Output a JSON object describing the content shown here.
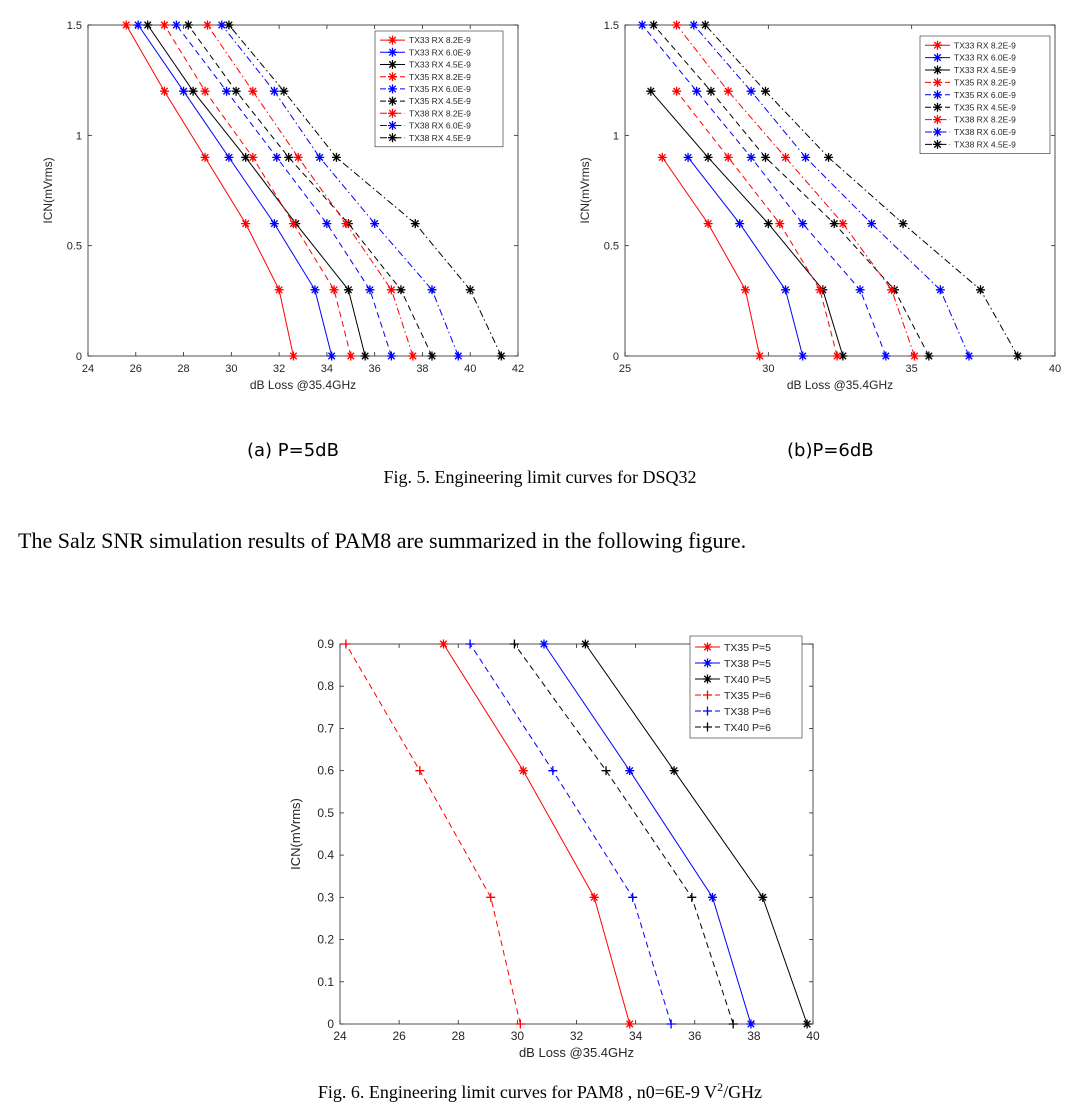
{
  "figure5": {
    "label_a": "(a) P=5dB",
    "label_b": "(b)P=6dB",
    "caption": "Fig. 5.  Engineering limit curves for DSQ32"
  },
  "paragraph": "The Salz SNR simulation results of PAM8 are summarized in the following figure.",
  "figure6": {
    "caption_prefix": "Fig. 6.  Engineering limit curves for PAM8 , n0=6E-9 V",
    "caption_sup": "2",
    "caption_suffix": "/GHz"
  },
  "chart_data": [
    {
      "type": "line",
      "xlabel": "dB Loss @35.4GHz",
      "ylabel": "ICN(mVrms)",
      "xlim": [
        24,
        42
      ],
      "ylim": [
        0,
        1.5
      ],
      "xticks": [
        24,
        26,
        28,
        30,
        32,
        34,
        36,
        38,
        40,
        42
      ],
      "yticks": [
        0,
        0.5,
        1,
        1.5
      ],
      "legend_position": "top-right",
      "y": [
        0,
        0.3,
        0.6,
        0.9,
        1.2,
        1.5
      ],
      "series": [
        {
          "name": "TX33 RX 8.2E-9",
          "color": "#ff0000",
          "dash": "solid",
          "marker": "star",
          "x": [
            32.6,
            32.0,
            30.6,
            28.9,
            27.2,
            25.6
          ]
        },
        {
          "name": "TX33 RX 6.0E-9",
          "color": "#0000ff",
          "dash": "solid",
          "marker": "star",
          "x": [
            34.2,
            33.5,
            31.8,
            29.9,
            28.0,
            26.1
          ]
        },
        {
          "name": "TX33 RX 4.5E-9",
          "color": "#000000",
          "dash": "solid",
          "marker": "star",
          "x": [
            35.6,
            34.9,
            32.7,
            30.6,
            28.4,
            26.5
          ]
        },
        {
          "name": "TX35 RX 8.2E-9",
          "color": "#ff0000",
          "dash": "dashed",
          "marker": "star",
          "x": [
            35.0,
            34.3,
            32.6,
            30.9,
            28.9,
            27.2
          ]
        },
        {
          "name": "TX35 RX 6.0E-9",
          "color": "#0000ff",
          "dash": "dashed",
          "marker": "star",
          "x": [
            36.7,
            35.8,
            34.0,
            31.9,
            29.8,
            27.7
          ]
        },
        {
          "name": "TX35 RX 4.5E-9",
          "color": "#000000",
          "dash": "dashed",
          "marker": "star",
          "x": [
            38.4,
            37.1,
            34.9,
            32.4,
            30.2,
            28.2
          ]
        },
        {
          "name": "TX38 RX 8.2E-9",
          "color": "#ff0000",
          "dash": "dashdot",
          "marker": "star",
          "x": [
            37.6,
            36.7,
            34.8,
            32.8,
            30.9,
            29.0
          ]
        },
        {
          "name": "TX38 RX 6.0E-9",
          "color": "#0000ff",
          "dash": "dashdot",
          "marker": "star",
          "x": [
            39.5,
            38.4,
            36.0,
            33.7,
            31.8,
            29.6
          ]
        },
        {
          "name": "TX38 RX 4.5E-9",
          "color": "#000000",
          "dash": "dashdot",
          "marker": "star",
          "x": [
            41.3,
            40.0,
            37.7,
            34.4,
            32.2,
            29.9
          ]
        }
      ]
    },
    {
      "type": "line",
      "xlabel": "dB Loss @35.4GHz",
      "ylabel": "ICN(mVrms)",
      "xlim": [
        25,
        40
      ],
      "ylim": [
        0,
        1.5
      ],
      "xticks": [
        25,
        30,
        35,
        40
      ],
      "yticks": [
        0,
        0.5,
        1,
        1.5
      ],
      "legend_position": "top-right",
      "y": [
        0,
        0.3,
        0.6,
        0.9,
        1.2,
        1.5
      ],
      "series": [
        {
          "name": "TX33 RX 8.2E-9",
          "color": "#ff0000",
          "dash": "solid",
          "marker": "star",
          "x": [
            29.7,
            29.2,
            27.9,
            26.3,
            null,
            null
          ]
        },
        {
          "name": "TX33 RX 6.0E-9",
          "color": "#0000ff",
          "dash": "solid",
          "marker": "star",
          "x": [
            31.2,
            30.6,
            29.0,
            27.2,
            null,
            null
          ]
        },
        {
          "name": "TX33 RX 4.5E-9",
          "color": "#000000",
          "dash": "solid",
          "marker": "star",
          "x": [
            32.6,
            31.9,
            30.0,
            27.9,
            25.9,
            null
          ]
        },
        {
          "name": "TX35 RX 8.2E-9",
          "color": "#ff0000",
          "dash": "dashed",
          "marker": "star",
          "x": [
            32.4,
            31.8,
            30.4,
            28.6,
            26.8,
            null
          ]
        },
        {
          "name": "TX35 RX 6.0E-9",
          "color": "#0000ff",
          "dash": "dashed",
          "marker": "star",
          "x": [
            34.1,
            33.2,
            31.2,
            29.4,
            27.5,
            25.6
          ]
        },
        {
          "name": "TX35 RX 4.5E-9",
          "color": "#000000",
          "dash": "dashed",
          "marker": "star",
          "x": [
            35.6,
            34.4,
            32.3,
            29.9,
            28.0,
            26.0
          ]
        },
        {
          "name": "TX38 RX 8.2E-9",
          "color": "#ff0000",
          "dash": "dashdot",
          "marker": "star",
          "x": [
            35.1,
            34.3,
            32.6,
            30.6,
            28.6,
            26.8
          ]
        },
        {
          "name": "TX38 RX 6.0E-9",
          "color": "#0000ff",
          "dash": "dashdot",
          "marker": "star",
          "x": [
            37.0,
            36.0,
            33.6,
            31.3,
            29.4,
            27.4
          ]
        },
        {
          "name": "TX38 RX 4.5E-9",
          "color": "#000000",
          "dash": "dashdot",
          "marker": "star",
          "x": [
            38.7,
            37.4,
            34.7,
            32.1,
            29.9,
            27.8
          ]
        }
      ]
    },
    {
      "type": "line",
      "xlabel": "dB Loss @35.4GHz",
      "ylabel": "ICN(mVrms)",
      "xlim": [
        24,
        40
      ],
      "ylim": [
        0,
        0.9
      ],
      "xticks": [
        24,
        26,
        28,
        30,
        32,
        34,
        36,
        38,
        40
      ],
      "yticks": [
        0,
        0.1,
        0.2,
        0.3,
        0.4,
        0.5,
        0.6,
        0.7,
        0.8,
        0.9
      ],
      "legend_position": "top-right",
      "y": [
        0,
        0.3,
        0.6,
        0.9
      ],
      "series": [
        {
          "name": "TX35 P=5",
          "color": "#ff0000",
          "dash": "solid",
          "marker": "star",
          "x": [
            33.8,
            32.6,
            30.2,
            27.5
          ]
        },
        {
          "name": "TX38 P=5",
          "color": "#0000ff",
          "dash": "solid",
          "marker": "star",
          "x": [
            37.9,
            36.6,
            33.8,
            30.9
          ]
        },
        {
          "name": "TX40 P=5",
          "color": "#000000",
          "dash": "solid",
          "marker": "star",
          "x": [
            39.8,
            38.3,
            35.3,
            32.3
          ]
        },
        {
          "name": "TX35 P=6",
          "color": "#ff0000",
          "dash": "dashed",
          "marker": "plus",
          "x": [
            30.1,
            29.1,
            26.7,
            24.2
          ]
        },
        {
          "name": "TX38 P=6",
          "color": "#0000ff",
          "dash": "dashed",
          "marker": "plus",
          "x": [
            35.2,
            33.9,
            31.2,
            28.4
          ]
        },
        {
          "name": "TX40 P=6",
          "color": "#000000",
          "dash": "dashed",
          "marker": "plus",
          "x": [
            37.3,
            35.9,
            33.0,
            29.9
          ]
        }
      ]
    }
  ]
}
